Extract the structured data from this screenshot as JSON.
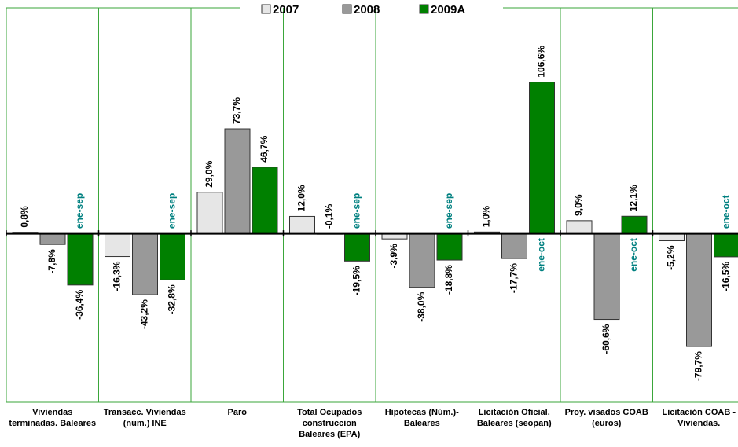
{
  "chart_data": {
    "type": "bar",
    "categories": [
      "Viviendas terminadas. Baleares",
      "Transacc. Viviendas (num.) INE",
      "Paro",
      "Total Ocupados construccion Baleares (EPA)",
      "Hipotecas (Núm.)-Baleares",
      "Licitación Oficial. Baleares (seopan)",
      "Proy. visados COAB (euros)",
      "Licitación COAB - Viviendas."
    ],
    "series": [
      {
        "name": "2007",
        "color": "#e6e6e6",
        "values": [
          0.8,
          -16.3,
          29.0,
          12.0,
          -3.9,
          1.0,
          9.0,
          -5.2
        ],
        "value_labels": [
          "0,8%",
          "-16,3%",
          "29,0%",
          "12,0%",
          "-3,9%",
          "1,0%",
          "9,0%",
          "-5,2%"
        ]
      },
      {
        "name": "2008",
        "color": "#999999",
        "values": [
          -7.8,
          -43.2,
          73.7,
          -0.1,
          -38.0,
          -17.7,
          -60.6,
          -79.7
        ],
        "value_labels": [
          "-7,8%",
          "-43,2%",
          "73,7%",
          "-0,1%",
          "-38,0%",
          "-17,7%",
          "-60,6%",
          "-79,7%"
        ]
      },
      {
        "name": "2009A",
        "color": "#008000",
        "values": [
          -36.4,
          -32.8,
          46.7,
          -19.5,
          -18.8,
          106.6,
          12.1,
          -16.5
        ],
        "value_labels": [
          "-36,4%",
          "-32,8%",
          "46,7%",
          "-19,5%",
          "-18,8%",
          "106,6%",
          "12,1%",
          "-16,5%"
        ]
      }
    ],
    "annotations": [
      "ene-sep",
      "ene-sep",
      null,
      "ene-sep",
      "ene-sep",
      "ene-oct",
      "ene-oct",
      "ene-oct"
    ],
    "ylim": [
      -119,
      159
    ],
    "legend": "top"
  }
}
